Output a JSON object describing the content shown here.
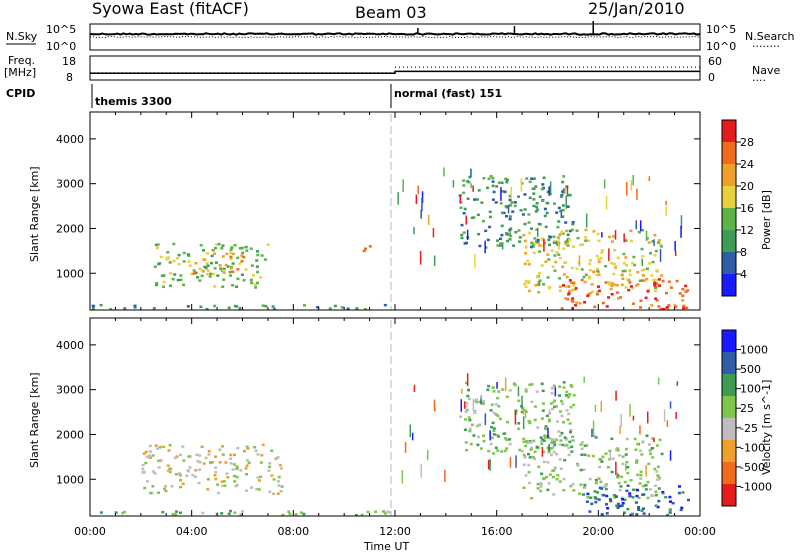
{
  "header": {
    "station": "Syowa East (fitACF)",
    "beam": "Beam 03",
    "date": "25/Jan/2010"
  },
  "left_labels": {
    "nsky": "N.Sky",
    "freq_line1": "Freq.",
    "freq_line2": "[MHz]",
    "cpid": "CPID"
  },
  "right_labels": {
    "nsearch": "N.Search",
    "nave": "Nave",
    "nsearch_dots": "........",
    "nave_dots": "...."
  },
  "cpid_segments": [
    {
      "label": "themis 3300"
    },
    {
      "label": "normal (fast) 151"
    }
  ],
  "x_axis": {
    "title": "Time UT",
    "ticks": [
      "00:00",
      "04:00",
      "08:00",
      "12:00",
      "16:00",
      "20:00",
      "00:00"
    ]
  },
  "colors": {
    "power": [
      "#1a1aff",
      "#2f5da6",
      "#3e9c55",
      "#5bb34a",
      "#e8d23c",
      "#f0a02a",
      "#f26a1b",
      "#e51c1c"
    ],
    "velocity": [
      "#e51c1c",
      "#f26a1b",
      "#f0a02a",
      "#bdbdbd",
      "#7fc64b",
      "#3e9c55",
      "#2f5da6",
      "#1a1aff"
    ],
    "frame": "#000000"
  },
  "chart_data": [
    {
      "type": "line",
      "name_label": "N.Sky",
      "y_tick_labels": [
        "10^5",
        "10^0"
      ],
      "right_tick_labels": [
        "10^5",
        "10^0"
      ],
      "note": "noise sky and noise search traces, near-constant"
    },
    {
      "type": "line",
      "y_tick_labels": [
        "18",
        "8"
      ],
      "right_tick_labels": [
        "60",
        "0"
      ],
      "freq_mhz_before_1200": 10.8,
      "freq_mhz_after_1200": 11.6,
      "nave_before_1200": 18,
      "nave_after_1200": 32
    },
    {
      "type": "heatmap",
      "title": "",
      "ylabel": "Slant Range [km]",
      "xlabel": "Time UT",
      "x_range_hours": [
        0,
        24
      ],
      "y_range_km": [
        180,
        4600
      ],
      "y_ticks": [
        1000,
        2000,
        3000,
        4000
      ],
      "colorbar_label": "Power [dB]",
      "colorbar_ticks": [
        "28",
        "24",
        "20",
        "16",
        "12",
        "8",
        "4"
      ],
      "colorbar_range": [
        0,
        32
      ],
      "echo_regions": [
        {
          "t_start": 0.0,
          "t_end": 12.0,
          "r_start": 200,
          "r_end": 320,
          "value": 8
        },
        {
          "t_start": 2.5,
          "t_end": 7.0,
          "r_start": 700,
          "r_end": 1700,
          "value": 14
        },
        {
          "t_start": 4.0,
          "t_end": 6.0,
          "r_start": 1000,
          "r_end": 1500,
          "value": 20
        },
        {
          "t_start": 10.5,
          "t_end": 11.0,
          "r_start": 1450,
          "r_end": 1650,
          "value": 24
        },
        {
          "t_start": 14.5,
          "t_end": 19.0,
          "r_start": 1600,
          "r_end": 3200,
          "value": 10
        },
        {
          "t_start": 17.0,
          "t_end": 22.5,
          "r_start": 600,
          "r_end": 2000,
          "value": 16
        },
        {
          "t_start": 18.5,
          "t_end": 23.5,
          "r_start": 200,
          "r_end": 900,
          "value": 26
        }
      ]
    },
    {
      "type": "heatmap",
      "title": "",
      "ylabel": "Slant Range [km]",
      "xlabel": "Time UT",
      "x_range_hours": [
        0,
        24
      ],
      "y_range_km": [
        180,
        4600
      ],
      "y_ticks": [
        1000,
        2000,
        3000,
        4000
      ],
      "colorbar_label": "Velocity [m s^-1]",
      "colorbar_ticks": [
        "1000",
        "500",
        "100",
        "25",
        "-25",
        "-100",
        "-500",
        "-1000"
      ],
      "colorbar_range": [
        -1000,
        1000
      ],
      "echo_regions": [
        {
          "t_start": 0.0,
          "t_end": 12.0,
          "r_start": 200,
          "r_end": 320,
          "value": 0
        },
        {
          "t_start": 2.0,
          "t_end": 7.5,
          "r_start": 700,
          "r_end": 1800,
          "value": -150
        },
        {
          "t_start": 14.5,
          "t_end": 19.0,
          "r_start": 1600,
          "r_end": 3200,
          "value": 150
        },
        {
          "t_start": 17.0,
          "t_end": 22.5,
          "r_start": 600,
          "r_end": 2000,
          "value": 80
        },
        {
          "t_start": 19.5,
          "t_end": 23.5,
          "r_start": 200,
          "r_end": 900,
          "value": 600
        }
      ]
    }
  ]
}
